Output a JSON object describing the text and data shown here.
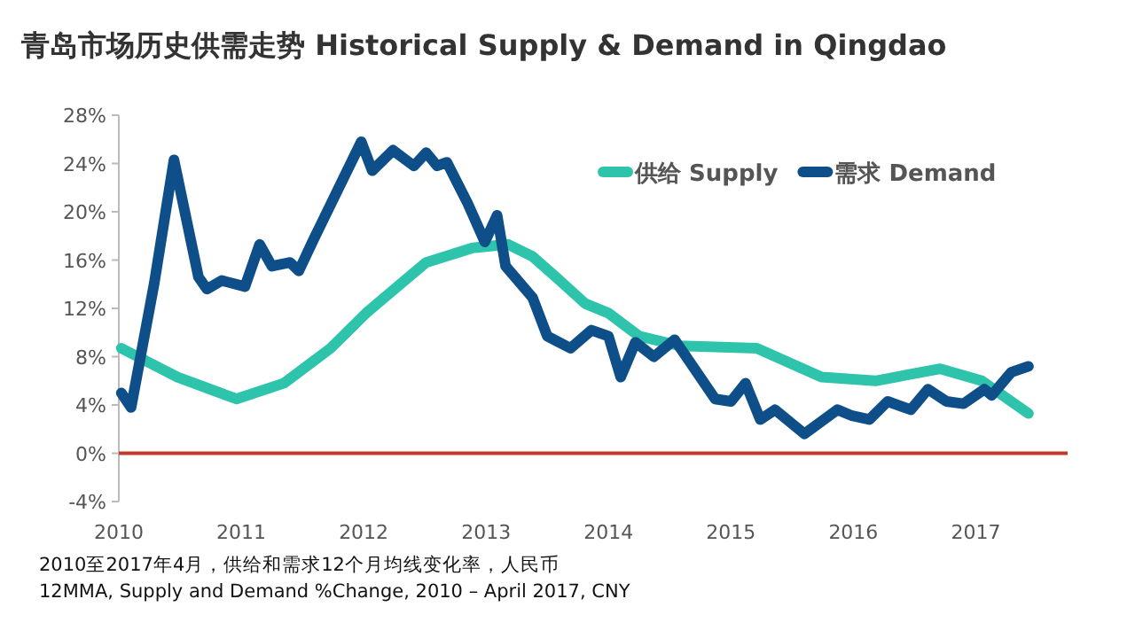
{
  "chart_data": {
    "type": "line",
    "title": "青岛市场历史供需走势 Historical Supply & Demand in Qingdao",
    "xlim": [
      2010,
      2017.75
    ],
    "xticks": [
      2010,
      2011,
      2012,
      2013,
      2014,
      2015,
      2016,
      2017
    ],
    "ylim": [
      -4,
      28
    ],
    "yticks": [
      {
        "value": -4,
        "label": "-4%"
      },
      {
        "value": 0,
        "label": "0%"
      },
      {
        "value": 4,
        "label": "4%"
      },
      {
        "value": 8,
        "label": "8%"
      },
      {
        "value": 12,
        "label": "12%"
      },
      {
        "value": 16,
        "label": "16%"
      },
      {
        "value": 20,
        "label": "20%"
      },
      {
        "value": 24,
        "label": "24%"
      },
      {
        "value": 28,
        "label": "28%"
      }
    ],
    "grid": false,
    "legend": "top right",
    "marker": "none",
    "line_style": "solid",
    "ref_lines": [
      {
        "axis": "y",
        "value": 0,
        "color": "#c0392b"
      }
    ],
    "series": [
      {
        "name": "供给 Supply",
        "color": "#2ec4ac",
        "x": [
          2010.02,
          2010.48,
          2010.96,
          2011.35,
          2011.73,
          2012.02,
          2012.31,
          2012.51,
          2012.89,
          2013.18,
          2013.38,
          2013.57,
          2013.81,
          2014.0,
          2014.25,
          2014.58,
          2015.21,
          2015.74,
          2016.18,
          2016.71,
          2017.05,
          2017.43
        ],
        "values": [
          8.7,
          6.3,
          4.5,
          5.8,
          8.7,
          11.6,
          14.1,
          15.8,
          17.0,
          17.3,
          16.3,
          14.6,
          12.4,
          11.6,
          9.7,
          8.9,
          8.7,
          6.3,
          6.0,
          7.0,
          6.0,
          3.3
        ]
      },
      {
        "name": "需求 Demand",
        "color": "#0e4f8a",
        "x": [
          2010.02,
          2010.1,
          2010.29,
          2010.45,
          2010.65,
          2010.72,
          2010.84,
          2011.03,
          2011.15,
          2011.25,
          2011.4,
          2011.47,
          2011.59,
          2011.98,
          2012.07,
          2012.24,
          2012.41,
          2012.51,
          2012.6,
          2012.68,
          2012.85,
          2012.99,
          2013.09,
          2013.16,
          2013.38,
          2013.5,
          2013.69,
          2013.86,
          2014.0,
          2014.1,
          2014.22,
          2014.37,
          2014.54,
          2014.87,
          2015.0,
          2015.12,
          2015.24,
          2015.36,
          2015.6,
          2015.87,
          2015.99,
          2016.13,
          2016.28,
          2016.47,
          2016.61,
          2016.76,
          2016.9,
          2017.07,
          2017.13,
          2017.29,
          2017.43
        ],
        "values": [
          5.0,
          3.8,
          14.1,
          24.3,
          14.6,
          13.6,
          14.3,
          13.8,
          17.3,
          15.5,
          15.8,
          15.1,
          17.7,
          25.8,
          23.4,
          25.1,
          23.8,
          24.9,
          23.8,
          24.1,
          20.7,
          17.5,
          19.7,
          15.5,
          12.9,
          9.7,
          8.7,
          10.2,
          9.7,
          6.3,
          9.2,
          8.0,
          9.4,
          4.5,
          4.3,
          5.8,
          2.8,
          3.6,
          1.6,
          3.6,
          3.1,
          2.8,
          4.3,
          3.6,
          5.3,
          4.3,
          4.1,
          5.3,
          4.8,
          6.7,
          7.2
        ]
      }
    ],
    "annotations": [
      "2010至2017年4月，供给和需求12个月均线变化率，人民币",
      "12MMA, Supply and Demand %Change, 2010 – April 2017, CNY"
    ]
  }
}
